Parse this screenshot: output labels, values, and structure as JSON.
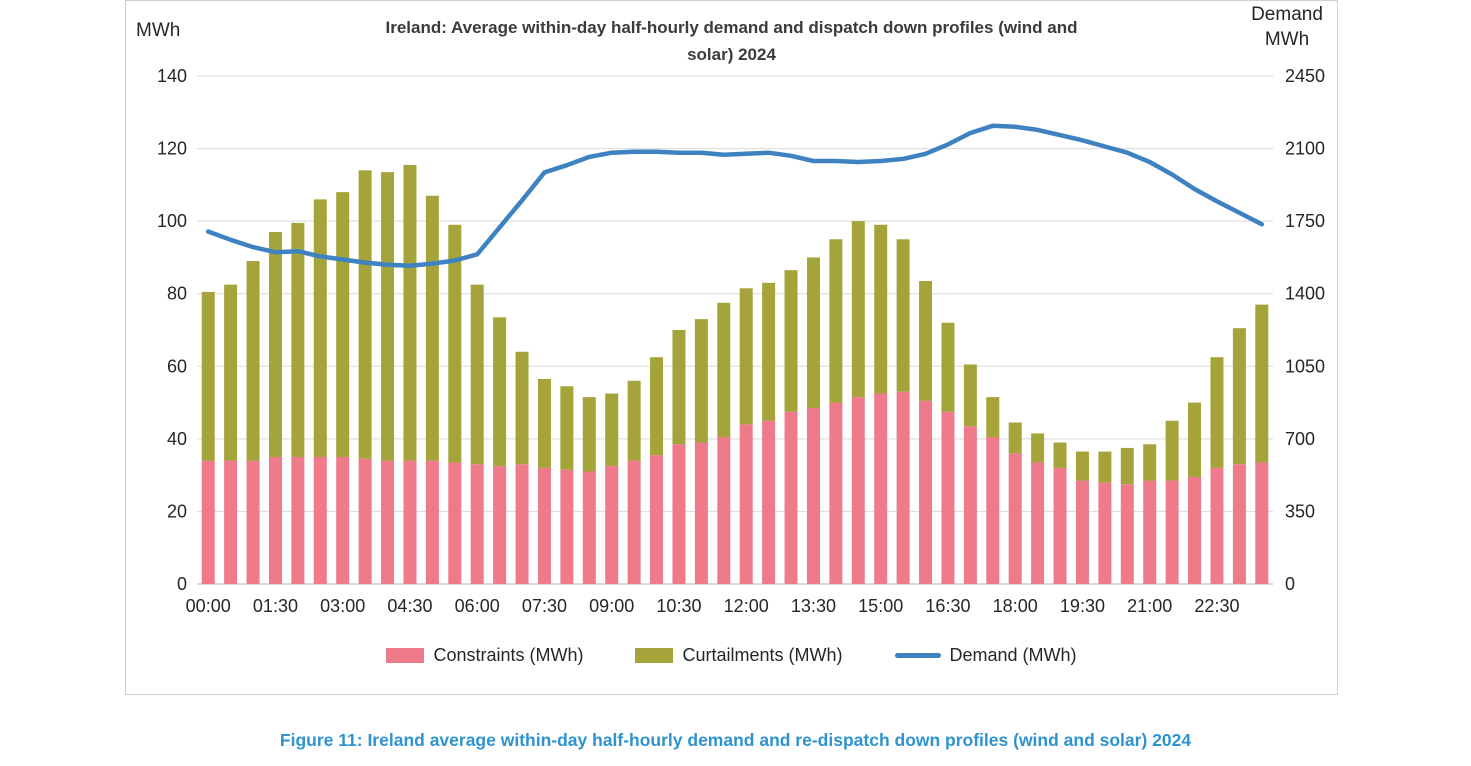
{
  "figure": {
    "title_lines": [
      "Ireland: Average within-day half-hourly demand and dispatch down profiles (wind and",
      "solar) 2024"
    ],
    "left_axis_unit": "MWh",
    "right_axis_unit": "Demand MWh",
    "caption": "Figure 11: Ireland average within-day half-hourly demand and re-dispatch down profiles (wind and solar) 2024"
  },
  "legend": [
    {
      "label": "Constraints (MWh)",
      "color": "#ee7a8a",
      "type": "bar"
    },
    {
      "label": "Curtailments (MWh)",
      "color": "#a4a43a",
      "type": "bar"
    },
    {
      "label": "Demand (MWh)",
      "color": "#3f82c2",
      "type": "line"
    }
  ],
  "colors": {
    "constraints": "#ee7a8a",
    "curtailments": "#a4a43a",
    "demand_line": "#3f82c2",
    "gridline": "#d9d9d9",
    "caption_text": "#2e93cf"
  },
  "chart_data": {
    "type": "bar",
    "subtype": "stacked-bars-with-line",
    "title": "Ireland: Average within-day half-hourly demand and dispatch down profiles (wind and solar) 2024",
    "categories": [
      "00:00",
      "00:30",
      "01:00",
      "01:30",
      "02:00",
      "02:30",
      "03:00",
      "03:30",
      "04:00",
      "04:30",
      "05:00",
      "05:30",
      "06:00",
      "06:30",
      "07:00",
      "07:30",
      "08:00",
      "08:30",
      "09:00",
      "09:30",
      "10:00",
      "10:30",
      "11:00",
      "11:30",
      "12:00",
      "12:30",
      "13:00",
      "13:30",
      "14:00",
      "14:30",
      "15:00",
      "15:30",
      "16:00",
      "16:30",
      "17:00",
      "17:30",
      "18:00",
      "18:30",
      "19:00",
      "19:30",
      "20:00",
      "20:30",
      "21:00",
      "21:30",
      "22:00",
      "22:30",
      "23:00",
      "23:30"
    ],
    "x_tick_every": 3,
    "x_tick_labels": [
      "00:00",
      "01:30",
      "03:00",
      "04:30",
      "06:00",
      "07:30",
      "09:00",
      "10:30",
      "12:00",
      "13:30",
      "15:00",
      "16:30",
      "18:00",
      "19:30",
      "21:00",
      "22:30"
    ],
    "series": [
      {
        "name": "Constraints (MWh)",
        "type": "bar",
        "stack": "dispatch-down",
        "axis": "left",
        "color": "#ee7a8a",
        "values": [
          34,
          34,
          34,
          35,
          35,
          35,
          35,
          34.5,
          34,
          34,
          34,
          33.5,
          33,
          32.5,
          33,
          32,
          31.5,
          31,
          32.5,
          34,
          35.5,
          38.5,
          39,
          40.5,
          44,
          45,
          47.5,
          48.5,
          50,
          51.5,
          52.5,
          53,
          50.5,
          47.5,
          43.5,
          40.5,
          36,
          33.5,
          32,
          28.5,
          28,
          27.5,
          28.5,
          28.5,
          29.5,
          32,
          33,
          33.5
        ]
      },
      {
        "name": "Curtailments (MWh)",
        "type": "bar",
        "stack": "dispatch-down",
        "axis": "left",
        "color": "#a4a43a",
        "values": [
          46.5,
          48.5,
          55,
          62,
          64.5,
          71,
          73,
          79.5,
          79.5,
          81.5,
          73,
          65.5,
          49.5,
          41,
          31,
          24.5,
          23,
          20.5,
          20,
          22,
          27,
          31.5,
          34,
          37,
          37.5,
          38,
          39,
          41.5,
          45,
          48.5,
          46.5,
          42,
          33,
          24.5,
          17,
          11,
          8.5,
          8,
          7,
          8,
          8.5,
          10,
          10,
          16.5,
          20.5,
          30.5,
          37.5,
          43.5
        ]
      },
      {
        "name": "Demand (MWh)",
        "type": "line",
        "axis": "right",
        "color": "#3f82c2",
        "values": [
          1700,
          1660,
          1625,
          1600,
          1605,
          1580,
          1565,
          1550,
          1540,
          1535,
          1545,
          1560,
          1590,
          1720,
          1850,
          1985,
          2020,
          2060,
          2080,
          2085,
          2085,
          2080,
          2080,
          2070,
          2075,
          2080,
          2065,
          2040,
          2040,
          2035,
          2040,
          2050,
          2075,
          2120,
          2175,
          2210,
          2205,
          2190,
          2165,
          2140,
          2110,
          2080,
          2035,
          1975,
          1905,
          1845,
          1790,
          1735
        ]
      }
    ],
    "left_axis": {
      "label": "MWh",
      "min": 0,
      "max": 140,
      "ticks": [
        0,
        20,
        40,
        60,
        80,
        100,
        120,
        140
      ]
    },
    "right_axis": {
      "label": "Demand MWh",
      "min": 0,
      "max": 2450,
      "ticks": [
        0,
        350,
        700,
        1050,
        1400,
        1750,
        2100,
        2450
      ]
    },
    "grid": true,
    "legend_position": "bottom"
  }
}
